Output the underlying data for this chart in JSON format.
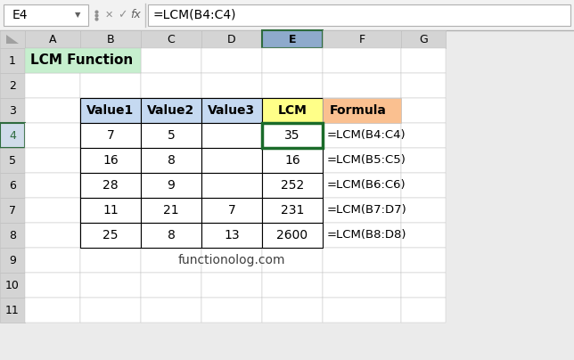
{
  "formula_bar_cell": "E4",
  "formula_bar_formula": "=LCM(B4:C4)",
  "title_cell_text": "LCM Function",
  "title_cell_bg": "#c6efce",
  "col_headers": [
    "A",
    "B",
    "C",
    "D",
    "E",
    "F",
    "G"
  ],
  "row_headers": [
    "1",
    "2",
    "3",
    "4",
    "5",
    "6",
    "7",
    "8",
    "9",
    "10",
    "11"
  ],
  "header_bg": "#d4d4d4",
  "header_selected_col_bg": "#8eaacc",
  "header_selected_row_bg": "#d0dcea",
  "table_headers": [
    "Value1",
    "Value2",
    "Value3",
    "LCM",
    "Formula"
  ],
  "table_header_bg_blue": "#c5d9f1",
  "table_header_bg_yellow": "#ffff88",
  "table_header_bg_orange": "#fac090",
  "data_rows": [
    [
      7,
      5,
      "",
      35,
      "=LCM(B4:C4)"
    ],
    [
      16,
      8,
      "",
      16,
      "=LCM(B5:C5)"
    ],
    [
      28,
      9,
      "",
      252,
      "=LCM(B6:C6)"
    ],
    [
      11,
      21,
      7,
      231,
      "=LCM(B7:D7)"
    ],
    [
      25,
      8,
      13,
      2600,
      "=LCM(B8:D8)"
    ]
  ],
  "watermark": "functionolog.com",
  "bg_color": "#ebebeb",
  "cell_bg": "#ffffff",
  "grid_color": "#c0c0c0",
  "border_color": "#000000",
  "selected_cell_border": "#1a6b2a",
  "formula_bar_bg": "#f2f2f2"
}
